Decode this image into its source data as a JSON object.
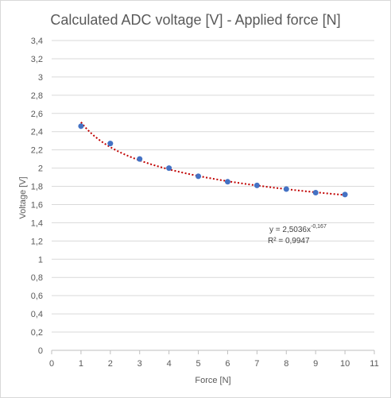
{
  "chart_data": {
    "type": "scatter",
    "title": "Calculated ADC voltage [V] - Applied force [N]",
    "xlabel": "Force [N]",
    "ylabel": "Voltage [V]",
    "xlim": [
      0,
      11
    ],
    "ylim": [
      0,
      3.4
    ],
    "x_ticks": [
      0,
      1,
      2,
      3,
      4,
      5,
      6,
      7,
      8,
      9,
      10,
      11
    ],
    "x_tick_labels": [
      "0",
      "1",
      "2",
      "3",
      "4",
      "5",
      "6",
      "7",
      "8",
      "9",
      "10",
      "11"
    ],
    "y_ticks": [
      0,
      0.2,
      0.4,
      0.6,
      0.8,
      1.0,
      1.2,
      1.4,
      1.6,
      1.8,
      2.0,
      2.2,
      2.4,
      2.6,
      2.8,
      3.0,
      3.2,
      3.4
    ],
    "y_tick_labels": [
      "0",
      "0,2",
      "0,4",
      "0,6",
      "0,8",
      "1",
      "1,2",
      "1,4",
      "1,6",
      "1,8",
      "2",
      "2,2",
      "2,4",
      "2,6",
      "2,8",
      "3",
      "3,2",
      "3,4"
    ],
    "grid": "horizontal",
    "series": [
      {
        "x": [
          1,
          2,
          3,
          4,
          5,
          6,
          7,
          8,
          9,
          10
        ],
        "y": [
          2.46,
          2.27,
          2.1,
          2.0,
          1.91,
          1.85,
          1.81,
          1.77,
          1.73,
          1.71
        ],
        "color": "#4472c4"
      }
    ],
    "trendline": {
      "type": "power",
      "coefficient": 2.5036,
      "exponent": -0.167,
      "color": "#c00000",
      "style": "dotted",
      "equation_main": "y = 2,5036x",
      "equation_exp": "-0,167",
      "r_squared": "R² = 0,9947"
    }
  }
}
